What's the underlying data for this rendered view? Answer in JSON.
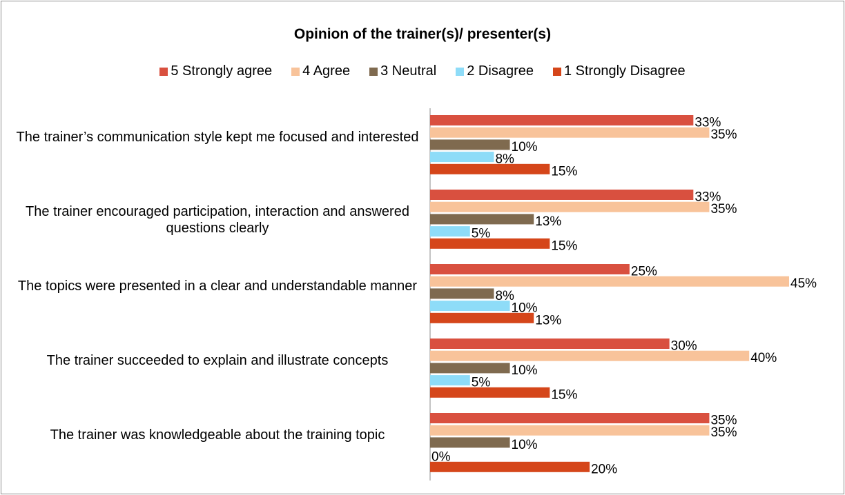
{
  "chart_data": {
    "type": "hbar",
    "title": "Opinion of the trainer(s)/ presenter(s)",
    "categories": [
      "The trainer’s communication style kept me focused and interested",
      "The trainer encouraged participation, interaction and answered questions clearly",
      "The topics were presented in a clear and understandable manner",
      "The trainer succeeded to explain and illustrate concepts",
      "The trainer was knowledgeable about the training topic"
    ],
    "series": [
      {
        "name": "5 Strongly agree",
        "color": "#d9503f",
        "values": [
          33,
          33,
          25,
          30,
          35
        ],
        "value_labels": [
          "33%",
          "33%",
          "25%",
          "30%",
          "35%"
        ]
      },
      {
        "name": "4 Agree",
        "color": "#f8c39a",
        "values": [
          35,
          35,
          45,
          40,
          35
        ],
        "value_labels": [
          "35%",
          "35%",
          "45%",
          "40%",
          "35%"
        ]
      },
      {
        "name": "3 Neutral",
        "color": "#7f6a4f",
        "values": [
          10,
          13,
          8,
          10,
          10
        ],
        "value_labels": [
          "10%",
          "13%",
          "8%",
          "10%",
          "10%"
        ]
      },
      {
        "name": "2 Disagree",
        "color": "#8edcf8",
        "values": [
          8,
          5,
          10,
          5,
          0
        ],
        "value_labels": [
          "8%",
          "5%",
          "10%",
          "5%",
          "0%"
        ]
      },
      {
        "name": "1 Strongly Disagree",
        "color": "#d5461a",
        "values": [
          15,
          15,
          13,
          15,
          20
        ],
        "value_labels": [
          "15%",
          "15%",
          "13%",
          "15%",
          "20%"
        ]
      }
    ],
    "legend": "top"
  }
}
